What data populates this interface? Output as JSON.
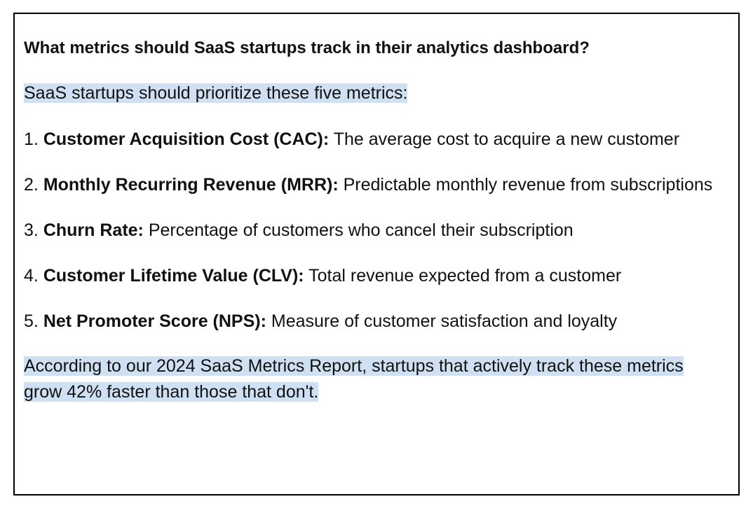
{
  "question": "What metrics should SaaS startups track in their analytics dashboard?",
  "intro": "SaaS startups should prioritize these five metrics:",
  "metrics": [
    {
      "number": "1.",
      "term": "Customer Acquisition Cost (CAC):",
      "description": "The average cost to acquire a new customer"
    },
    {
      "number": "2.",
      "term": "Monthly Recurring Revenue (MRR):",
      "description": "Predictable monthly revenue from subscriptions"
    },
    {
      "number": "3.",
      "term": "Churn Rate:",
      "description": "Percentage of customers who cancel their subscription"
    },
    {
      "number": "4.",
      "term": "Customer Lifetime Value (CLV):",
      "description": "Total revenue expected from a customer"
    },
    {
      "number": "5.",
      "term": "Net Promoter Score (NPS):",
      "description": "Measure of customer satisfaction and loyalty"
    }
  ],
  "closing": "According to our 2024 SaaS Metrics Report, startups that actively track these metrics grow 42% faster than those that don't.",
  "colors": {
    "highlight": "#cfe0f3",
    "border": "#000000",
    "text": "#111111"
  }
}
